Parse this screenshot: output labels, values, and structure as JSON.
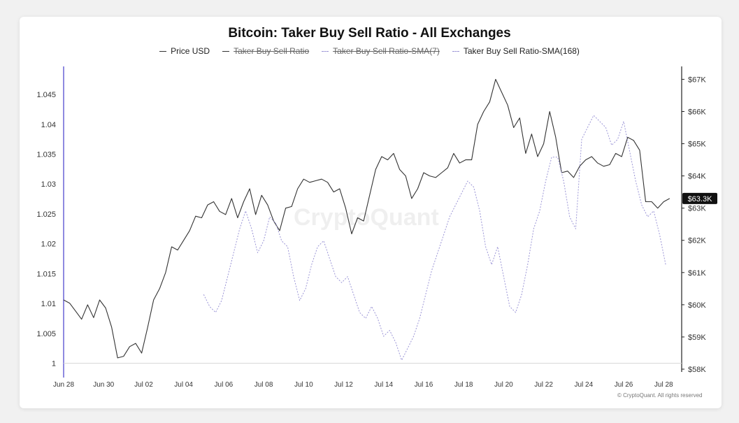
{
  "chart_data": {
    "type": "line",
    "title": "Bitcoin: Taker Buy Sell Ratio - All Exchanges",
    "legend": [
      {
        "name": "Price USD",
        "style": "solid",
        "color": "#333333",
        "disabled": false
      },
      {
        "name": "Taker Buy Sell Ratio",
        "style": "solid",
        "color": "#333333",
        "disabled": true
      },
      {
        "name": "Taker Buy Sell Ratio-SMA(7)",
        "style": "dashed",
        "color": "#9b95d6",
        "disabled": true
      },
      {
        "name": "Taker Buy Sell Ratio-SMA(168)",
        "style": "dashed",
        "color": "#9b95d6",
        "disabled": false
      }
    ],
    "legend_position": "top-center",
    "x_ticks": [
      "Jun 28",
      "Jun 30",
      "Jul 02",
      "Jul 04",
      "Jul 06",
      "Jul 08",
      "Jul 10",
      "Jul 12",
      "Jul 14",
      "Jul 16",
      "Jul 18",
      "Jul 20",
      "Jul 22",
      "Jul 24",
      "Jul 26",
      "Jul 28"
    ],
    "xlim": [
      0,
      30.9
    ],
    "y_left": {
      "ticks": [
        "1",
        "1.005",
        "1.01",
        "1.015",
        "1.02",
        "1.025",
        "1.03",
        "1.035",
        "1.04",
        "1.045"
      ],
      "lim": [
        0.999,
        1.0497
      ]
    },
    "y_right": {
      "ticks": [
        "$58K",
        "$59K",
        "$60K",
        "$61K",
        "$62K",
        "$63K",
        "$64K",
        "$65K",
        "$66K",
        "$67K"
      ],
      "lim": [
        58000,
        67400
      ]
    },
    "current_price_label": "$63.3K",
    "current_price_value": 63300,
    "grid": false,
    "series": [
      {
        "name": "Price USD",
        "axis": "right",
        "x": [
          0,
          0.3,
          0.6,
          0.9,
          1.2,
          1.5,
          1.8,
          2.1,
          2.4,
          2.7,
          3.0,
          3.3,
          3.6,
          3.9,
          4.2,
          4.5,
          4.8,
          5.1,
          5.4,
          5.7,
          6.0,
          6.3,
          6.6,
          6.9,
          7.2,
          7.5,
          7.8,
          8.1,
          8.4,
          8.7,
          9.0,
          9.3,
          9.6,
          9.9,
          10.2,
          10.5,
          10.8,
          11.1,
          11.4,
          11.7,
          12.0,
          12.3,
          12.6,
          12.9,
          13.2,
          13.5,
          13.8,
          14.1,
          14.4,
          14.7,
          15.0,
          15.3,
          15.6,
          15.9,
          16.2,
          16.5,
          16.8,
          17.1,
          17.4,
          17.7,
          18.0,
          18.3,
          18.6,
          18.9,
          19.2,
          19.5,
          19.8,
          20.1,
          20.4,
          20.7,
          21.0,
          21.3,
          21.6,
          21.9,
          22.2,
          22.5,
          22.8,
          23.1,
          23.4,
          23.7,
          24.0,
          24.3,
          24.6,
          24.9,
          25.2,
          25.5,
          25.8,
          26.1,
          26.4,
          26.7,
          27.0,
          27.3,
          27.6,
          27.9,
          28.2,
          28.5,
          28.8,
          29.1,
          29.4,
          29.7,
          30.0,
          30.3
        ],
        "values": [
          60150,
          60050,
          59800,
          59550,
          60000,
          59600,
          60150,
          59900,
          59300,
          58350,
          58400,
          58700,
          58800,
          58500,
          59300,
          60150,
          60500,
          61000,
          61800,
          61700,
          62000,
          62300,
          62750,
          62700,
          63100,
          63200,
          62900,
          62800,
          63300,
          62700,
          63200,
          63600,
          62800,
          63400,
          63100,
          62600,
          62300,
          63000,
          63050,
          63600,
          63900,
          63800,
          63850,
          63900,
          63800,
          63500,
          63600,
          63000,
          62200,
          62700,
          62600,
          63400,
          64200,
          64600,
          64500,
          64700,
          64200,
          64000,
          63300,
          63600,
          64100,
          64000,
          63950,
          64100,
          64250,
          64700,
          64400,
          64500,
          64500,
          65600,
          66000,
          66300,
          67000,
          66600,
          66200,
          65500,
          65800,
          64700,
          65300,
          64600,
          65000,
          66000,
          65200,
          64100,
          64150,
          63950,
          64300,
          64500,
          64600,
          64400,
          64300,
          64350,
          64700,
          64600,
          65200,
          65100,
          64800,
          63200,
          63200,
          63000,
          63200,
          63300
        ]
      },
      {
        "name": "Taker Buy Sell Ratio-SMA(168)",
        "axis": "left",
        "x": [
          7.0,
          7.3,
          7.6,
          7.9,
          8.2,
          8.5,
          8.8,
          9.1,
          9.4,
          9.7,
          10.0,
          10.3,
          10.6,
          10.9,
          11.2,
          11.5,
          11.8,
          12.1,
          12.4,
          12.7,
          13.0,
          13.3,
          13.6,
          13.9,
          14.2,
          14.5,
          14.8,
          15.1,
          15.4,
          15.7,
          16.0,
          16.3,
          16.6,
          16.9,
          17.2,
          17.5,
          17.8,
          18.1,
          18.4,
          18.7,
          19.0,
          19.3,
          19.6,
          19.9,
          20.2,
          20.5,
          20.8,
          21.1,
          21.4,
          21.7,
          22.0,
          22.3,
          22.6,
          22.9,
          23.2,
          23.5,
          23.8,
          24.1,
          24.4,
          24.7,
          25.0,
          25.3,
          25.6,
          25.9,
          26.2,
          26.5,
          26.8,
          27.1,
          27.4,
          27.7,
          28.0,
          28.3,
          28.6,
          28.9,
          29.2,
          29.5,
          29.8,
          30.1
        ],
        "values": [
          1.0115,
          1.0095,
          1.0085,
          1.0105,
          1.0145,
          1.0185,
          1.0225,
          1.0255,
          1.0225,
          1.0185,
          1.0205,
          1.0245,
          1.0235,
          1.0205,
          1.0195,
          1.0145,
          1.0105,
          1.0125,
          1.0165,
          1.0195,
          1.0205,
          1.0175,
          1.0145,
          1.0135,
          1.0145,
          1.0115,
          1.0085,
          1.0075,
          1.0095,
          1.0075,
          1.0045,
          1.0055,
          1.0035,
          1.0005,
          1.0025,
          1.0045,
          1.0075,
          1.0115,
          1.0155,
          1.0185,
          1.0215,
          1.0245,
          1.0265,
          1.0285,
          1.0305,
          1.0295,
          1.0255,
          1.0195,
          1.0165,
          1.0195,
          1.0145,
          1.0095,
          1.0085,
          1.0115,
          1.0165,
          1.0225,
          1.0255,
          1.0305,
          1.0345,
          1.0345,
          1.0305,
          1.0245,
          1.0225,
          1.0375,
          1.0395,
          1.0415,
          1.0405,
          1.0395,
          1.0365,
          1.0375,
          1.0405,
          1.0355,
          1.0305,
          1.0265,
          1.0245,
          1.0255,
          1.0215,
          1.0165
        ]
      }
    ]
  },
  "watermark": "CryptoQuant",
  "footer": "© CryptoQuant. All rights reserved"
}
